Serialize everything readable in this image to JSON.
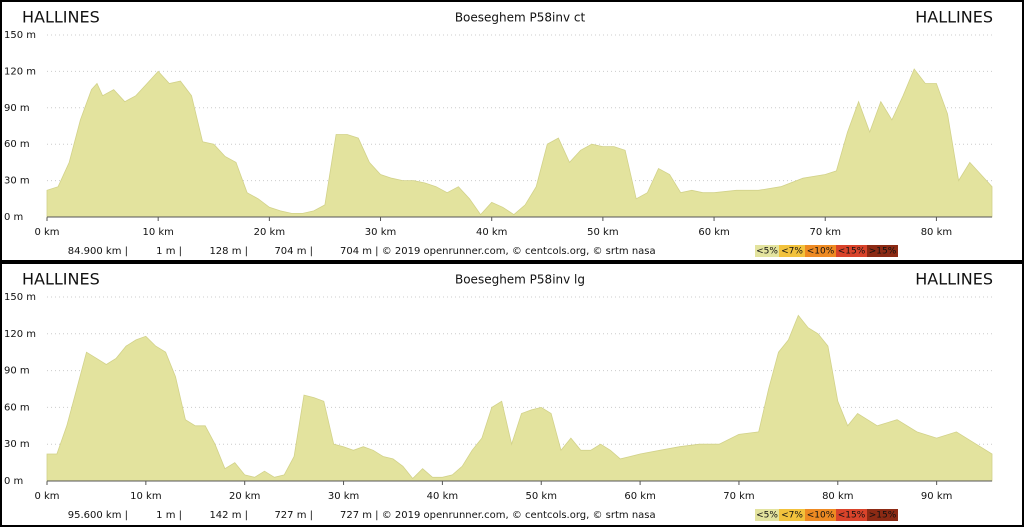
{
  "chart_data": [
    {
      "type": "area",
      "title": "Boeseghem P58inv ct",
      "start_label": "HALLINES",
      "end_label": "HALLINES",
      "color": "#e3e39e",
      "x": [
        0,
        1,
        2,
        3,
        4,
        4.5,
        5,
        6,
        7,
        8,
        9,
        10,
        11,
        12,
        13,
        14,
        15,
        16,
        17,
        18,
        19,
        20,
        21,
        22,
        23,
        24,
        25,
        26,
        27,
        28,
        29,
        30,
        31,
        32,
        33,
        34,
        35,
        36,
        37,
        38,
        39,
        40,
        41,
        42,
        43,
        44,
        45,
        46,
        47,
        48,
        49,
        50,
        51,
        52,
        53,
        54,
        55,
        56,
        57,
        58,
        59,
        60,
        62,
        64,
        66,
        68,
        70,
        71,
        72,
        73,
        74,
        75,
        76,
        77,
        78,
        79,
        80,
        81,
        82,
        83,
        84,
        85
      ],
      "values": [
        22,
        25,
        45,
        80,
        105,
        110,
        100,
        105,
        95,
        100,
        110,
        120,
        110,
        112,
        100,
        62,
        60,
        50,
        45,
        20,
        15,
        8,
        5,
        3,
        3,
        5,
        10,
        68,
        68,
        65,
        45,
        35,
        32,
        30,
        30,
        28,
        25,
        20,
        25,
        15,
        2,
        12,
        8,
        2,
        10,
        25,
        60,
        65,
        45,
        55,
        60,
        58,
        58,
        55,
        15,
        20,
        40,
        35,
        20,
        22,
        20,
        20,
        22,
        22,
        25,
        32,
        35,
        38,
        70,
        95,
        70,
        95,
        80,
        100,
        122,
        110,
        110,
        85,
        30,
        45,
        35,
        25
      ],
      "xlim": [
        0,
        85
      ],
      "ylim": [
        0,
        150
      ],
      "xticks": [
        {
          "value": 0,
          "label": "0 km"
        },
        {
          "value": 10,
          "label": "10 km"
        },
        {
          "value": 20,
          "label": "20 km"
        },
        {
          "value": 30,
          "label": "30 km"
        },
        {
          "value": 40,
          "label": "40 km"
        },
        {
          "value": 50,
          "label": "50 km"
        },
        {
          "value": 60,
          "label": "60 km"
        },
        {
          "value": 70,
          "label": "70 km"
        },
        {
          "value": 80,
          "label": "80 km"
        }
      ],
      "yticks": [
        {
          "value": 0,
          "label": "0 m"
        },
        {
          "value": 30,
          "label": "30 m"
        },
        {
          "value": 60,
          "label": "60 m"
        },
        {
          "value": 90,
          "label": "90 m"
        },
        {
          "value": 120,
          "label": "120 m"
        },
        {
          "value": 150,
          "label": "150 m"
        }
      ],
      "grid": true,
      "footer": [
        "84.900 km |",
        "1 m |",
        "128 m |",
        "704 m |",
        "704 m | © 2019 openrunner.com, © centcols.org, © srtm nasa"
      ],
      "legend": [
        {
          "label": "<5%",
          "color": "#e3e39e"
        },
        {
          "label": "<7%",
          "color": "#f2c23c"
        },
        {
          "label": "<10%",
          "color": "#ee8a22"
        },
        {
          "label": "<15%",
          "color": "#d9432a"
        },
        {
          "label": ">15%",
          "color": "#8c2a14"
        }
      ]
    },
    {
      "type": "area",
      "title": "Boeseghem P58inv lg",
      "start_label": "HALLINES",
      "end_label": "HALLINES",
      "color": "#e3e39e",
      "x": [
        0,
        1,
        2,
        3,
        4,
        5,
        6,
        7,
        8,
        9,
        10,
        11,
        12,
        13,
        14,
        15,
        16,
        17,
        18,
        19,
        20,
        21,
        22,
        23,
        24,
        25,
        26,
        27,
        28,
        29,
        30,
        31,
        32,
        33,
        34,
        35,
        36,
        37,
        38,
        39,
        40,
        41,
        42,
        43,
        44,
        45,
        46,
        47,
        48,
        49,
        50,
        51,
        52,
        53,
        54,
        55,
        56,
        57,
        58,
        59,
        60,
        62,
        64,
        66,
        68,
        70,
        72,
        73,
        74,
        75,
        76,
        77,
        78,
        79,
        80,
        81,
        82,
        84,
        86,
        88,
        90,
        92,
        94,
        95.6
      ],
      "values": [
        22,
        22,
        45,
        75,
        105,
        100,
        95,
        100,
        110,
        115,
        118,
        110,
        105,
        85,
        50,
        45,
        45,
        30,
        10,
        15,
        5,
        3,
        8,
        3,
        5,
        20,
        70,
        68,
        65,
        30,
        28,
        25,
        28,
        25,
        20,
        18,
        12,
        2,
        10,
        3,
        3,
        5,
        12,
        25,
        35,
        60,
        65,
        30,
        55,
        58,
        60,
        55,
        25,
        35,
        25,
        25,
        30,
        25,
        18,
        20,
        22,
        25,
        28,
        30,
        30,
        38,
        40,
        75,
        105,
        115,
        135,
        125,
        120,
        110,
        65,
        45,
        55,
        45,
        50,
        40,
        35,
        40,
        30,
        22
      ],
      "xlim": [
        0,
        95.6
      ],
      "ylim": [
        0,
        150
      ],
      "xticks": [
        {
          "value": 0,
          "label": "0 km"
        },
        {
          "value": 10,
          "label": "10 km"
        },
        {
          "value": 20,
          "label": "20 km"
        },
        {
          "value": 30,
          "label": "30 km"
        },
        {
          "value": 40,
          "label": "40 km"
        },
        {
          "value": 50,
          "label": "50 km"
        },
        {
          "value": 60,
          "label": "60 km"
        },
        {
          "value": 70,
          "label": "70 km"
        },
        {
          "value": 80,
          "label": "80 km"
        },
        {
          "value": 90,
          "label": "90 km"
        }
      ],
      "yticks": [
        {
          "value": 0,
          "label": "0 m"
        },
        {
          "value": 30,
          "label": "30 m"
        },
        {
          "value": 60,
          "label": "60 m"
        },
        {
          "value": 90,
          "label": "90 m"
        },
        {
          "value": 120,
          "label": "120 m"
        },
        {
          "value": 150,
          "label": "150 m"
        }
      ],
      "grid": true,
      "footer": [
        "95.600 km |",
        "1 m |",
        "142 m |",
        "727 m |",
        "727 m | © 2019 openrunner.com, © centcols.org, © srtm nasa"
      ],
      "legend": [
        {
          "label": "<5%",
          "color": "#e3e39e"
        },
        {
          "label": "<7%",
          "color": "#f2c23c"
        },
        {
          "label": "<10%",
          "color": "#ee8a22"
        },
        {
          "label": "<15%",
          "color": "#d9432a"
        },
        {
          "label": ">15%",
          "color": "#8c2a14"
        }
      ]
    }
  ]
}
